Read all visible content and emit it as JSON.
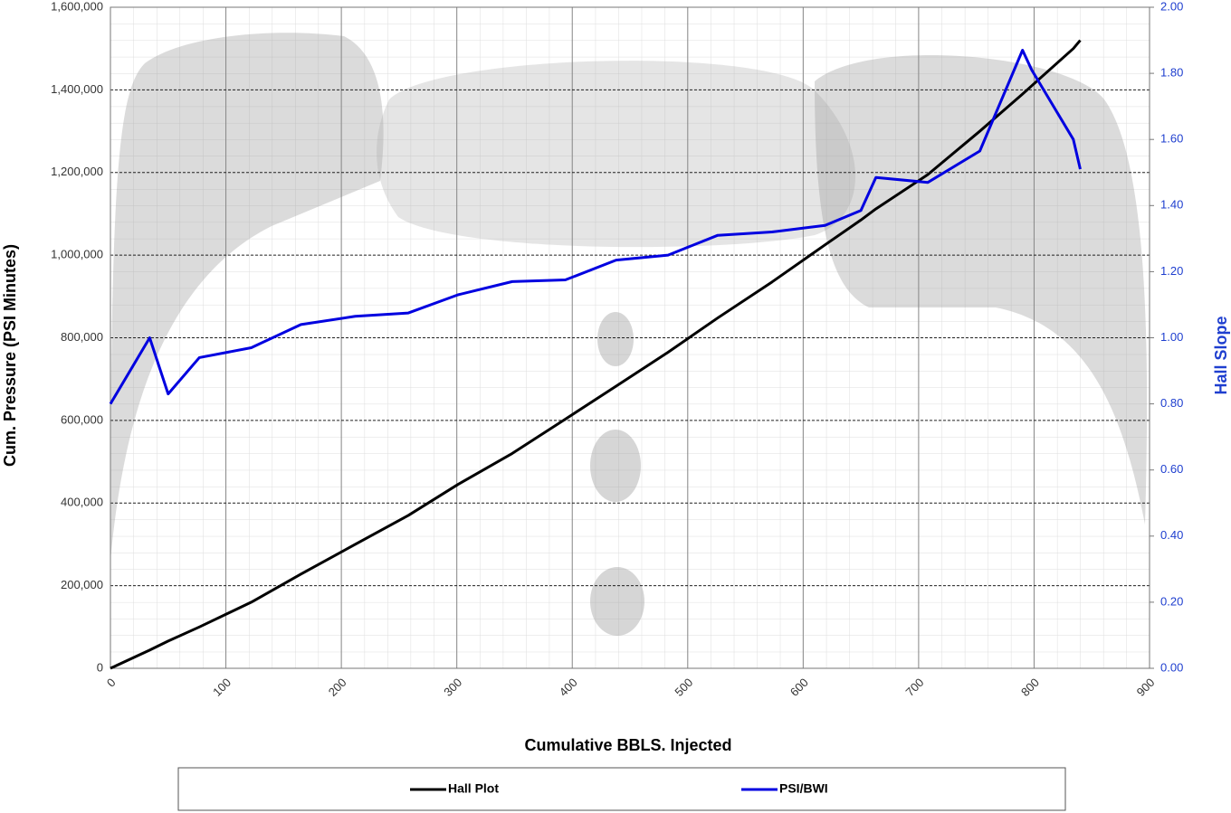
{
  "chart_data": {
    "type": "line",
    "xlabel": "Cumulative BBLS. Injected",
    "ylabel": "Cum. Pressure (PSI Minutes)",
    "y2label": "Hall Slope",
    "x": [
      0,
      34,
      50,
      77,
      122,
      165,
      212,
      258,
      301,
      348,
      394,
      438,
      483,
      526,
      573,
      619,
      650,
      663,
      708,
      753,
      790,
      798,
      834,
      840
    ],
    "series": [
      {
        "name": "Hall Plot",
        "color": "#000000",
        "axis": "y",
        "values": [
          0,
          44000,
          66000,
          100000,
          160000,
          228000,
          300000,
          370000,
          445000,
          520000,
          603000,
          683000,
          765000,
          848000,
          935000,
          1025000,
          1085000,
          1112000,
          1195000,
          1300000,
          1390000,
          1410000,
          1500000,
          1520000
        ]
      },
      {
        "name": "PSI/BWI",
        "color": "#0000e0",
        "axis": "y2",
        "values": [
          0.8,
          1.0,
          0.83,
          0.94,
          0.97,
          1.04,
          1.065,
          1.075,
          1.13,
          1.17,
          1.175,
          1.235,
          1.25,
          1.31,
          1.32,
          1.34,
          1.385,
          1.485,
          1.47,
          1.565,
          1.87,
          1.81,
          1.6,
          1.51
        ]
      }
    ],
    "xlim": [
      0,
      900
    ],
    "xticks": [
      0,
      100,
      200,
      300,
      400,
      500,
      600,
      700,
      800,
      900
    ],
    "ylim": [
      0,
      1600000
    ],
    "yticks": [
      0,
      {
        "value": 200000,
        "label": "200,000"
      },
      {
        "value": 400000,
        "label": "400,000"
      },
      {
        "value": 600000,
        "label": "600,000"
      },
      {
        "value": 800000,
        "label": "800,000"
      },
      {
        "value": 1000000,
        "label": "1,000,000"
      },
      {
        "value": 1200000,
        "label": "1,200,000"
      },
      {
        "value": 1400000,
        "label": "1,400,000"
      },
      {
        "value": 1600000,
        "label": "1,600,000"
      }
    ],
    "y2lim": [
      0,
      2
    ],
    "y2ticks": [
      {
        "value": 0,
        "label": "0.00"
      },
      {
        "value": 0.2,
        "label": "0.20"
      },
      {
        "value": 0.4,
        "label": "0.40"
      },
      {
        "value": 0.6,
        "label": "0.60"
      },
      {
        "value": 0.8,
        "label": "0.80"
      },
      {
        "value": 1,
        "label": "1.00"
      },
      {
        "value": 1.2,
        "label": "1.20"
      },
      {
        "value": 1.4,
        "label": "1.40"
      },
      {
        "value": 1.6,
        "label": "1.60"
      },
      {
        "value": 1.8,
        "label": "1.80"
      },
      {
        "value": 2,
        "label": "2.00"
      }
    ],
    "grid": true,
    "legend": "bottom"
  }
}
